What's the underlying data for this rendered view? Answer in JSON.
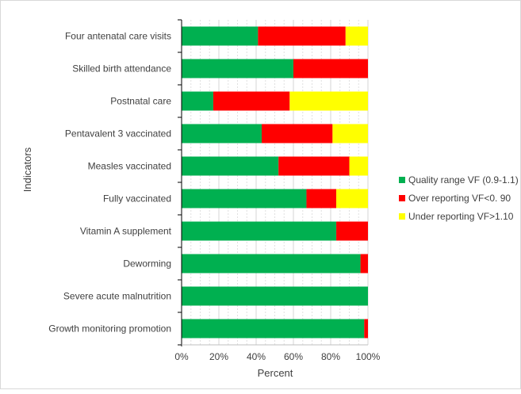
{
  "chart_data": {
    "type": "bar",
    "orientation": "horizontal",
    "stacked": true,
    "categories": [
      "Four antenatal care visits",
      "Skilled birth attendance",
      "Postnatal care",
      "Pentavalent 3 vaccinated",
      "Measles vaccinated",
      "Fully vaccinated",
      "Vitamin A supplement",
      "Deworming",
      "Severe acute malnutrition",
      "Growth monitoring promotion"
    ],
    "series": [
      {
        "name": "Quality range VF (0.9-1.1)",
        "color": "#00b050",
        "values": [
          41,
          60,
          17,
          43,
          52,
          67,
          83,
          96,
          100,
          98
        ]
      },
      {
        "name": "Over reporting VF<0. 90",
        "color": "#ff0000",
        "values": [
          47,
          40,
          41,
          38,
          38,
          16,
          17,
          4,
          0,
          2
        ]
      },
      {
        "name": "Under reporting  VF>1.10",
        "color": "#ffff00",
        "values": [
          12,
          0,
          42,
          19,
          10,
          17,
          0,
          0,
          0,
          0
        ]
      }
    ],
    "xlabel": "Percent",
    "ylabel": "Indicators",
    "xlim": [
      0,
      100
    ],
    "xticks": [
      "0%",
      "20%",
      "40%",
      "60%",
      "80%",
      "100%"
    ],
    "grid": true,
    "legend_position": "right"
  }
}
